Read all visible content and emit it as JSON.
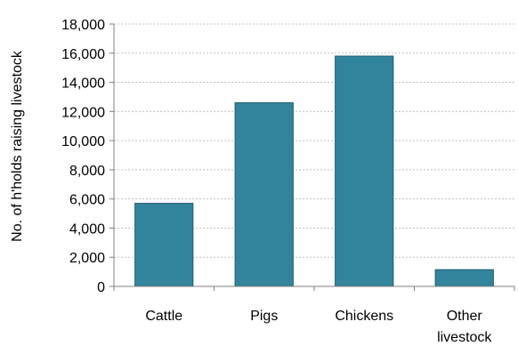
{
  "chart_data": {
    "type": "bar",
    "title": "",
    "xlabel": "",
    "ylabel": "No. of h'holds raising livestock",
    "categories": [
      [
        "Cattle"
      ],
      [
        "Pigs"
      ],
      [
        "Chickens"
      ],
      [
        "Other",
        "livestock"
      ]
    ],
    "values": [
      5700,
      12600,
      15800,
      1150
    ],
    "ylim": [
      0,
      18000
    ],
    "yticks": [
      0,
      2000,
      4000,
      6000,
      8000,
      10000,
      12000,
      14000,
      16000,
      18000
    ],
    "ytick_labels": [
      "0",
      "2,000",
      "4,000",
      "6,000",
      "8,000",
      "10,000",
      "12,000",
      "14,000",
      "16,000",
      "18,000"
    ],
    "grid": true,
    "legend": "none",
    "colors": {
      "bar_fill": "#31849b",
      "bar_stroke": "#215d6e",
      "grid": "#bfbfbf",
      "axis": "#808080"
    }
  }
}
